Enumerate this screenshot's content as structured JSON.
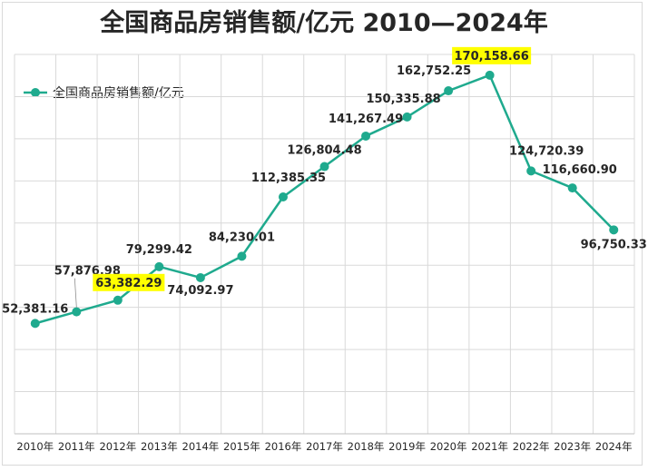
{
  "chart_data": {
    "type": "line",
    "title": "全国商品房销售额/亿元 2010—2024年",
    "categories": [
      "2010年",
      "2011年",
      "2012年",
      "2013年",
      "2014年",
      "2015年",
      "2016年",
      "2017年",
      "2018年",
      "2019年",
      "2020年",
      "2021年",
      "2022年",
      "2023年",
      "2024年"
    ],
    "series": [
      {
        "name": "全国商品房销售额/亿元",
        "color": "#1faa8e",
        "values": [
          52381.16,
          57876.98,
          63382.29,
          79299.42,
          74092.97,
          84230.01,
          112385.35,
          126804.48,
          141267.49,
          150335.88,
          162752.25,
          170158.66,
          124720.39,
          116660.9,
          96750.33
        ]
      }
    ],
    "data_labels": [
      "52,381.16",
      "57,876.98",
      "63,382.29",
      "79,299.42",
      "74,092.97",
      "84,230.01",
      "112,385.35",
      "126,804.48",
      "141,267.49",
      "150,335.88",
      "162,752.25",
      "170,158.66",
      "124,720.39",
      "116,660.90",
      "96,750.33"
    ],
    "highlighted_labels": [
      2,
      11
    ],
    "highlight_color": "#ffff00",
    "ylim": [
      0,
      180000
    ],
    "y_axis_labels_shown": false,
    "grid": true,
    "legend_position": "top-left"
  }
}
